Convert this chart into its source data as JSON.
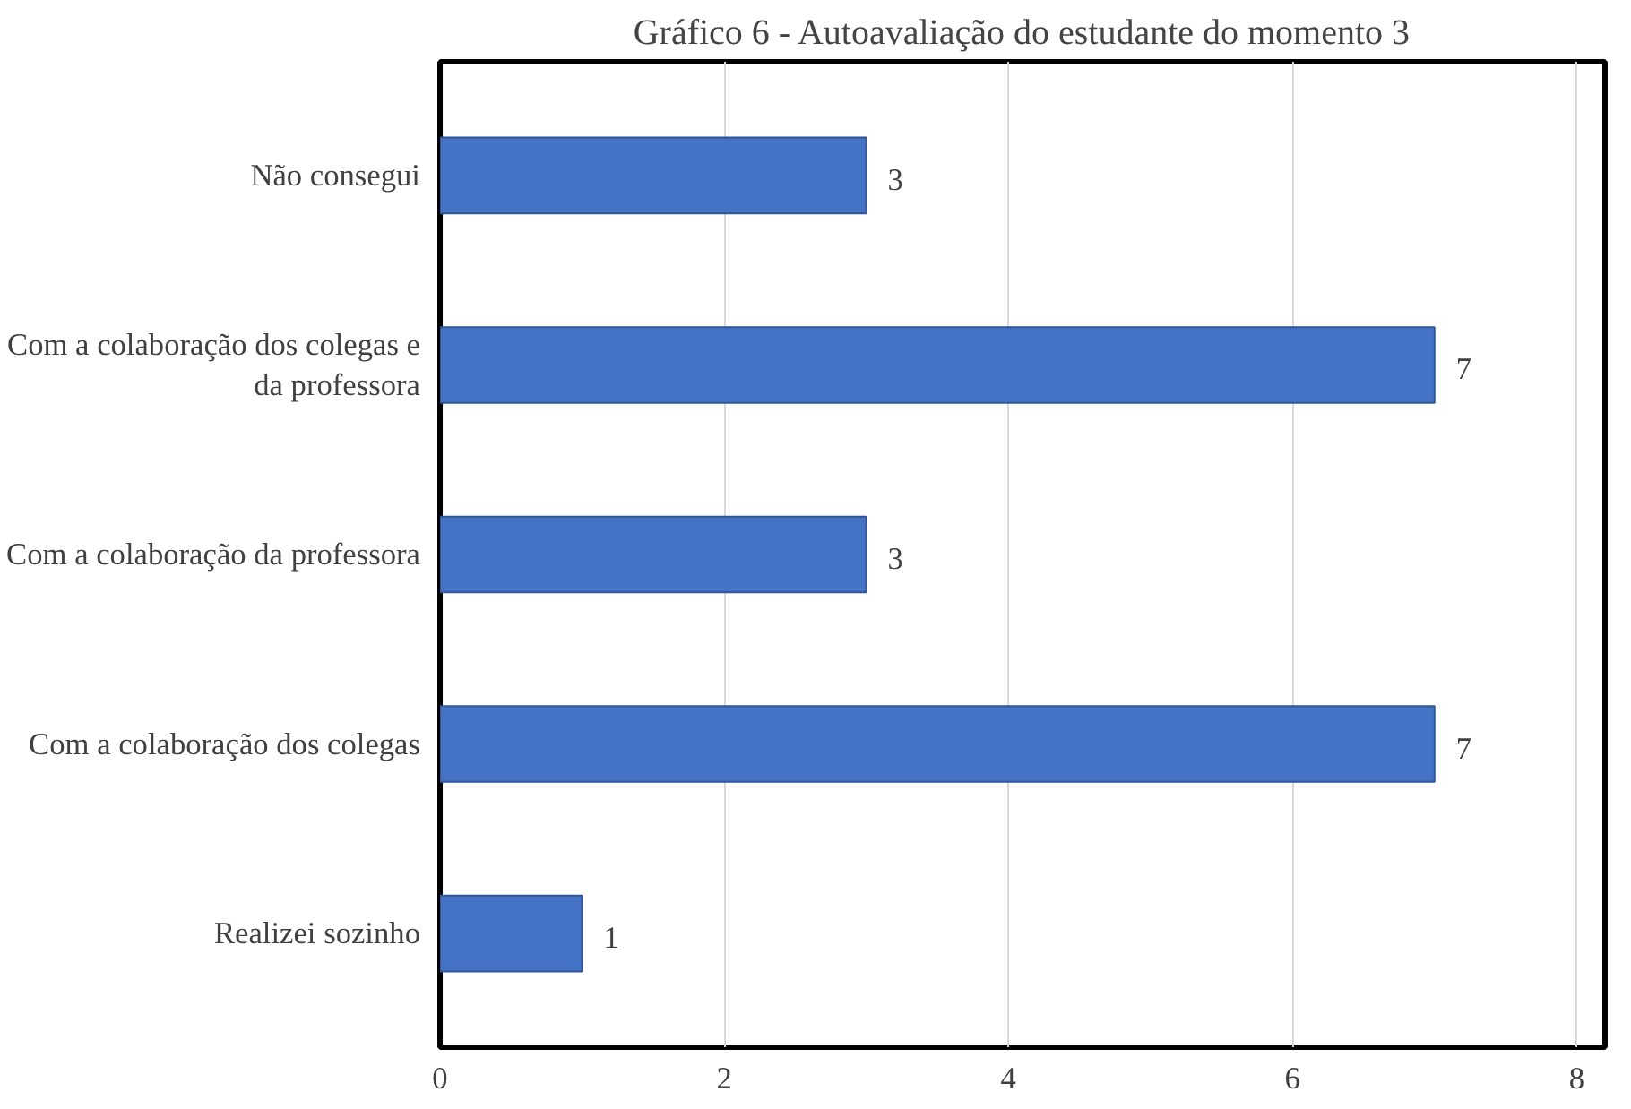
{
  "chart_data": {
    "type": "bar",
    "orientation": "horizontal",
    "title": "Gráfico 6 - Autoavaliação do estudante do momento 3",
    "categories": [
      "Não consegui",
      "Com a colaboração dos colegas e\nda professora",
      "Com a colaboração da professora",
      "Com a colaboração dos colegas",
      "Realizei sozinho"
    ],
    "values": [
      3,
      7,
      3,
      7,
      1
    ],
    "color": "#4472c4",
    "xlim": [
      0,
      8.2
    ],
    "xticks": [
      0,
      2,
      4,
      6,
      8
    ],
    "grid": "x",
    "data_labels": true
  }
}
